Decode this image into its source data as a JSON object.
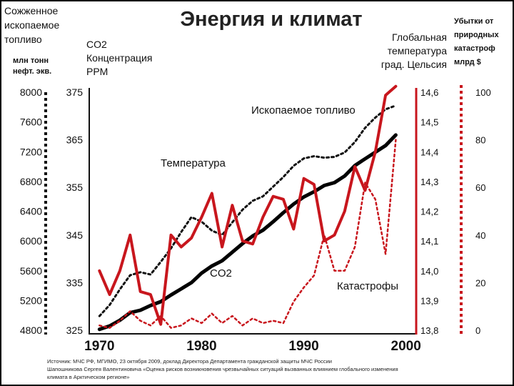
{
  "chart_data": {
    "type": "line",
    "title": "Энергия и климат",
    "x_ticks": [
      1970,
      1980,
      1990,
      2000
    ],
    "xlim": [
      1969,
      2001
    ],
    "axes": {
      "fuel": {
        "label_lines": [
          "Сожженное",
          "ископаемое",
          "топливо"
        ],
        "unit_lines": [
          "млн тонн",
          "нефт. экв."
        ],
        "ticks": [
          "8000",
          "7600",
          "7200",
          "6800",
          "6400",
          "6000",
          "5600",
          "5200",
          "4800"
        ],
        "ylim": [
          4800,
          8000
        ]
      },
      "co2": {
        "label_lines": [
          "CO2",
          "Концентрация",
          "PPM"
        ],
        "ticks": [
          "375",
          "365",
          "355",
          "345",
          "335",
          "325"
        ],
        "ylim": [
          325,
          375
        ]
      },
      "temperature": {
        "label_lines": [
          "Глобальная",
          "температура",
          "град. Цельсия"
        ],
        "ticks": [
          "14,6",
          "14,5",
          "14,4",
          "14,3",
          "14,2",
          "14,1",
          "14,0",
          "13,9",
          "13,8"
        ],
        "ylim": [
          13.8,
          14.6
        ]
      },
      "losses": {
        "label_lines": [
          "Убытки от",
          "природных",
          "катастроф",
          "млрд $"
        ],
        "ticks": [
          "100",
          "80",
          "60",
          "40",
          "20",
          "0"
        ],
        "ylim": [
          0,
          100
        ]
      }
    },
    "series": [
      {
        "name": "Ископаемое топливо",
        "axis": "fuel",
        "color": "#111111",
        "style": "dotted",
        "x": [
          1970,
          1971,
          1972,
          1973,
          1974,
          1975,
          1976,
          1977,
          1978,
          1979,
          1980,
          1981,
          1982,
          1983,
          1984,
          1985,
          1986,
          1987,
          1988,
          1989,
          1990,
          1991,
          1992,
          1993,
          1994,
          1995,
          1996,
          1997,
          1998,
          1999
        ],
        "y": [
          4990,
          5140,
          5350,
          5540,
          5580,
          5550,
          5720,
          5900,
          6120,
          6320,
          6260,
          6140,
          6080,
          6250,
          6420,
          6540,
          6600,
          6730,
          6860,
          7010,
          7110,
          7140,
          7120,
          7130,
          7190,
          7330,
          7520,
          7660,
          7770,
          7820
        ]
      },
      {
        "name": "CO2",
        "axis": "co2",
        "color": "#000000",
        "style": "solid",
        "x": [
          1970,
          1971,
          1972,
          1973,
          1974,
          1975,
          1976,
          1977,
          1978,
          1979,
          1980,
          1981,
          1982,
          1983,
          1984,
          1985,
          1986,
          1987,
          1988,
          1989,
          1990,
          1991,
          1992,
          1993,
          1994,
          1995,
          1996,
          1997,
          1998,
          1999
        ],
        "y": [
          325.2,
          325.9,
          327.1,
          328.7,
          329.2,
          330.2,
          331.0,
          332.4,
          333.7,
          335.0,
          337.0,
          338.5,
          339.6,
          341.4,
          343.2,
          344.8,
          346.0,
          347.8,
          349.7,
          351.5,
          353.0,
          354.1,
          355.4,
          356.0,
          357.4,
          359.6,
          361.0,
          362.4,
          363.8,
          366.0
        ]
      },
      {
        "name": "Температура",
        "axis": "temperature",
        "color": "#c8161d",
        "style": "solid",
        "x": [
          1970,
          1971,
          1972,
          1973,
          1974,
          1975,
          1976,
          1977,
          1978,
          1979,
          1980,
          1981,
          1982,
          1983,
          1984,
          1985,
          1986,
          1987,
          1988,
          1989,
          1990,
          1991,
          1992,
          1993,
          1994,
          1995,
          1996,
          1997,
          1998,
          1999
        ],
        "y": [
          14.0,
          13.92,
          14.0,
          14.12,
          13.93,
          13.92,
          13.82,
          14.12,
          14.08,
          14.11,
          14.18,
          14.26,
          14.08,
          14.22,
          14.1,
          14.09,
          14.18,
          14.25,
          14.24,
          14.14,
          14.31,
          14.29,
          14.1,
          14.12,
          14.2,
          14.35,
          14.27,
          14.4,
          14.59,
          14.62
        ]
      },
      {
        "name": "Катастрофы",
        "axis": "losses",
        "color": "#c8161d",
        "style": "dotted",
        "x": [
          1970,
          1971,
          1972,
          1973,
          1974,
          1975,
          1976,
          1977,
          1978,
          1979,
          1980,
          1981,
          1982,
          1983,
          1984,
          1985,
          1986,
          1987,
          1988,
          1989,
          1990,
          1991,
          1992,
          1993,
          1994,
          1995,
          1996,
          1997,
          1998,
          1999
        ],
        "y": [
          2,
          1,
          4,
          8,
          4,
          2,
          6,
          1,
          2,
          5,
          3,
          7,
          3,
          6,
          2,
          5,
          3,
          4,
          3,
          12,
          18,
          23,
          40,
          25,
          25,
          35,
          62,
          55,
          32,
          80
        ]
      }
    ],
    "annotations": {
      "fuel": "Ископаемое топливо",
      "temperature": "Температура",
      "co2": "CO2",
      "disasters": "Катастрофы"
    },
    "grid": false,
    "legend": "none"
  },
  "source": {
    "line1": "Источник: МЧС РФ, МГИМО, 23 октября 2009, доклад Директора Департамента гражданской защиты МЧС России",
    "line2": "Шапошникова Сергея Валентиновича «Оценка рисков возникновения чрезвычайных ситуаций вызванных влиянием глобального изменения",
    "line3": "климата  в Арктическом регионе»"
  }
}
